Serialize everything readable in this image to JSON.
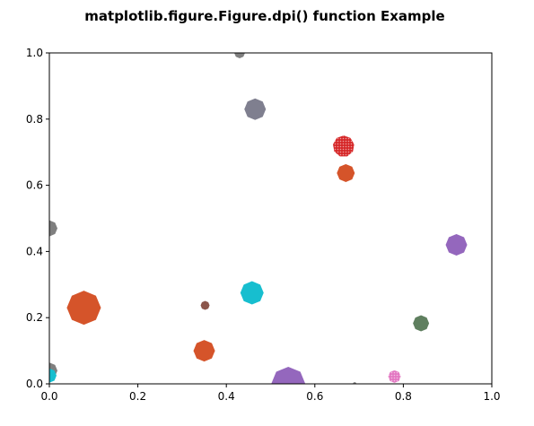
{
  "chart_data": {
    "type": "scatter",
    "title": "matplotlib.figure.Figure.dpi() function Example",
    "xlabel": "",
    "ylabel": "",
    "xlim": [
      0.0,
      1.0
    ],
    "ylim": [
      0.0,
      1.0
    ],
    "grid": false,
    "x_ticks": [
      "0.0",
      "0.2",
      "0.4",
      "0.6",
      "0.8",
      "1.0"
    ],
    "y_ticks": [
      "0.0",
      "0.2",
      "0.4",
      "0.6",
      "0.8",
      "1.0"
    ],
    "points": [
      {
        "x": 0.43,
        "y": 1.0,
        "size": 6,
        "sides": 8,
        "color": "#7f7f7f"
      },
      {
        "x": 0.465,
        "y": 0.83,
        "size": 12,
        "sides": 8,
        "color": "#7f7f8f"
      },
      {
        "x": 0.665,
        "y": 0.718,
        "size": 12,
        "sides": 9,
        "color": "#d62728",
        "stipple": true
      },
      {
        "x": 0.67,
        "y": 0.637,
        "size": 10,
        "sides": 8,
        "color": "#d5542a"
      },
      {
        "x": 0.0,
        "y": 0.47,
        "size": 9,
        "sides": 8,
        "color": "#7f7f7f"
      },
      {
        "x": 0.92,
        "y": 0.42,
        "size": 12,
        "sides": 8,
        "color": "#9467bd"
      },
      {
        "x": 0.078,
        "y": 0.23,
        "size": 19,
        "sides": 8,
        "color": "#d5542a"
      },
      {
        "x": 0.352,
        "y": 0.237,
        "size": 5,
        "sides": 8,
        "color": "#8c564b"
      },
      {
        "x": 0.458,
        "y": 0.275,
        "size": 13,
        "sides": 8,
        "color": "#17becf"
      },
      {
        "x": 0.84,
        "y": 0.183,
        "size": 9,
        "sides": 8,
        "color": "#5f7f5f"
      },
      {
        "x": 0.35,
        "y": 0.1,
        "size": 12,
        "sides": 8,
        "color": "#d5542a"
      },
      {
        "x": 0.54,
        "y": 0.0,
        "size": 19,
        "sides": 8,
        "color": "#9467bd"
      },
      {
        "x": 0.78,
        "y": 0.022,
        "size": 7,
        "sides": 8,
        "color": "#e377c2",
        "stipple": true
      },
      {
        "x": 0.0,
        "y": 0.04,
        "size": 9,
        "sides": 8,
        "color": "#7f7f7f"
      },
      {
        "x": 0.0,
        "y": 0.025,
        "size": 8,
        "sides": 8,
        "color": "#17becf"
      },
      {
        "x": 0.69,
        "y": 0.0,
        "size": 2,
        "sides": 8,
        "color": "#7f7f7f"
      }
    ]
  }
}
